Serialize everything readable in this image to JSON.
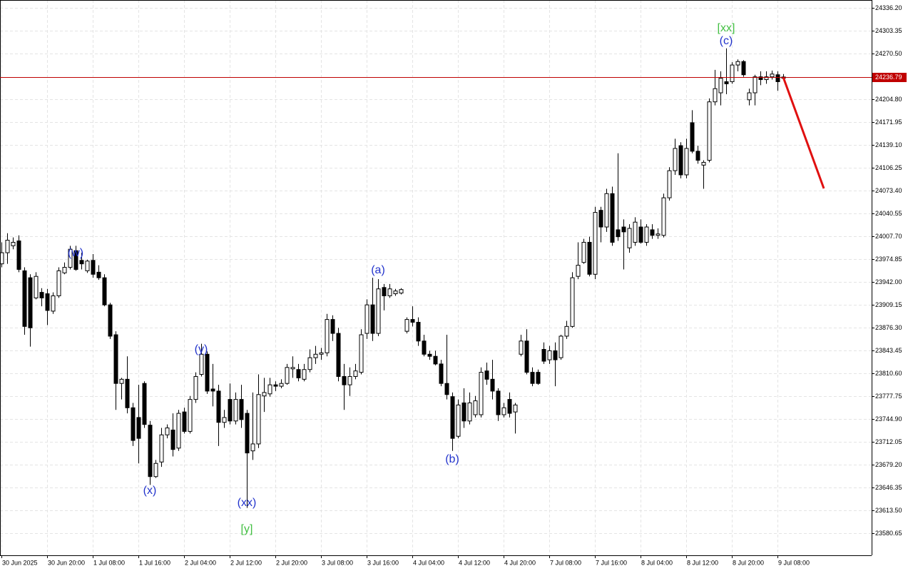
{
  "chart_data": {
    "type": "candlestick",
    "categories": [
      "30 Jun 2025",
      null,
      null,
      null,
      null,
      null,
      null,
      null,
      "30 Jun 20:00",
      null,
      null,
      null,
      null,
      null,
      null,
      null,
      "1 Jul 08:00",
      null,
      null,
      null,
      null,
      null,
      null,
      null,
      "1 Jul 16:00",
      null,
      null,
      null,
      null,
      null,
      null,
      null,
      "2 Jul 04:00",
      null,
      null,
      null,
      null,
      null,
      null,
      null,
      "2 Jul 12:00",
      null,
      null,
      null,
      null,
      null,
      null,
      null,
      "2 Jul 20:00",
      null,
      null,
      null,
      null,
      null,
      null,
      null,
      "3 Jul 08:00",
      null,
      null,
      null,
      null,
      null,
      null,
      null,
      "3 Jul 16:00",
      null,
      null,
      null,
      null,
      null,
      null,
      null,
      "4 Jul 04:00",
      null,
      null,
      null,
      null,
      null,
      null,
      null,
      "4 Jul 12:00",
      null,
      null,
      null,
      null,
      null,
      null,
      null,
      "4 Jul 20:00",
      null,
      null,
      null,
      null,
      null,
      null,
      null,
      "7 Jul 08:00",
      null,
      null,
      null,
      null,
      null,
      null,
      null,
      "7 Jul 16:00",
      null,
      null,
      null,
      null,
      null,
      null,
      null,
      "8 Jul 04:00",
      null,
      null,
      null,
      null,
      null,
      null,
      null,
      "8 Jul 12:00",
      null,
      null,
      null,
      null,
      null,
      null,
      null,
      "8 Jul 20:00",
      null,
      null,
      null,
      null,
      null,
      null,
      null,
      "9 Jul 08:00",
      null
    ],
    "open": [
      23968,
      23984,
      23994,
      24001,
      23958,
      23948,
      23919,
      23927,
      23925,
      23900,
      23922,
      23955,
      23963,
      23987,
      23973,
      23958,
      23973,
      23956,
      23948,
      23909,
      23866,
      23796,
      23802,
      23761,
      23747,
      23796,
      23736,
      23662,
      23683,
      23722,
      23729,
      23703,
      23755,
      23727,
      23773,
      23809,
      23838,
      23788,
      23785,
      23740,
      23773,
      23742,
      23773,
      23753,
      23699,
      23709,
      23778,
      23781,
      23794,
      23792,
      23796,
      23817,
      23816,
      23802,
      23816,
      23833,
      23838,
      23840,
      23888,
      23868,
      23806,
      23794,
      23806,
      23812,
      23868,
      23909,
      23868,
      23934,
      23922,
      23925,
      23926,
      23871,
      23888,
      23884,
      23857,
      23838,
      23835,
      23824,
      23796,
      23777,
      23720,
      23768,
      23742,
      23751,
      23751,
      23814,
      23802,
      23785,
      23751,
      23773,
      23755,
      23838,
      23857,
      23812,
      23812,
      23845,
      23830,
      23843,
      23833,
      23864,
      23878,
      23950,
      23970,
      23999,
      23953,
      24045,
      24021,
      24069,
      24017,
      24021,
      23991,
      23999,
      24021,
      23999,
      24017,
      24009,
      24009,
      24063,
      24102,
      24138,
      24096,
      24171,
      24130,
      24110,
      24117,
      24201,
      24214,
      24230,
      24230,
      24254,
      24259,
      24204,
      24214,
      24237,
      24233,
      24237,
      24240,
      24235
    ],
    "high": [
      23999,
      24012,
      24006,
      24009,
      23963,
      23953,
      23956,
      23933,
      23932,
      23927,
      23963,
      23970,
      23994,
      23994,
      23984,
      23974,
      23982,
      23966,
      23953,
      23912,
      23871,
      23804,
      23835,
      23768,
      23794,
      23799,
      23742,
      23686,
      23732,
      23737,
      23753,
      23758,
      23761,
      23778,
      23812,
      23853,
      23842,
      23824,
      23794,
      23758,
      23796,
      23783,
      23794,
      23758,
      23783,
      23809,
      23804,
      23804,
      23799,
      23802,
      23824,
      23835,
      23824,
      23824,
      23845,
      23850,
      23847,
      23896,
      23894,
      23876,
      23824,
      23819,
      23824,
      23874,
      23917,
      23948,
      23946,
      23939,
      23939,
      23932,
      23933,
      23891,
      23907,
      23891,
      23866,
      23843,
      23843,
      23830,
      23866,
      23783,
      23773,
      23789,
      23783,
      23778,
      23819,
      23826,
      23830,
      23789,
      23768,
      23783,
      23768,
      23866,
      23874,
      23819,
      23816,
      23855,
      23850,
      23855,
      23866,
      23886,
      23956,
      23999,
      24004,
      24007,
      24050,
      24050,
      24076,
      24079,
      24127,
      24032,
      24025,
      24035,
      24032,
      24025,
      24025,
      24019,
      24069,
      24107,
      24148,
      24143,
      24148,
      24189,
      24138,
      24117,
      24206,
      24247,
      24245,
      24278,
      24258,
      24262,
      24261,
      24220,
      24240,
      24245,
      24245,
      24246,
      24245,
      24241
    ],
    "low": [
      23963,
      23968,
      23989,
      23956,
      23866,
      23849,
      23917,
      23907,
      23880,
      23896,
      23919,
      23953,
      23960,
      23958,
      23960,
      23955,
      23948,
      23945,
      23907,
      23860,
      23758,
      23773,
      23753,
      23706,
      23681,
      23732,
      23650,
      23660,
      23676,
      23717,
      23691,
      23699,
      23724,
      23724,
      23768,
      23806,
      23781,
      23763,
      23706,
      23732,
      23737,
      23737,
      23732,
      23617,
      23686,
      23703,
      23755,
      23777,
      23785,
      23789,
      23794,
      23804,
      23799,
      23799,
      23812,
      23824,
      23830,
      23835,
      23857,
      23799,
      23758,
      23778,
      23802,
      23809,
      23860,
      23857,
      23864,
      23901,
      23919,
      23922,
      23924,
      23868,
      23878,
      23850,
      23835,
      23830,
      23822,
      23792,
      23773,
      23699,
      23717,
      23732,
      23737,
      23747,
      23747,
      23794,
      23773,
      23742,
      23747,
      23747,
      23724,
      23835,
      23809,
      23792,
      23794,
      23824,
      23824,
      23792,
      23830,
      23860,
      23876,
      23946,
      23968,
      23950,
      23946,
      23999,
      24014,
      23994,
      24001,
      23960,
      23984,
      23994,
      23997,
      23994,
      24004,
      24004,
      24006,
      24059,
      24096,
      24091,
      24091,
      24127,
      24112,
      24076,
      24114,
      24196,
      24196,
      24212,
      24227,
      24245,
      24237,
      24196,
      24196,
      24225,
      24227,
      24233,
      24217,
      24233
    ],
    "close": [
      23984,
      24002,
      23999,
      23960,
      23878,
      23876,
      23950,
      23919,
      23901,
      23922,
      23958,
      23963,
      23989,
      23960,
      23968,
      23972,
      23953,
      23948,
      23909,
      23864,
      23796,
      23802,
      23761,
      23714,
      23717,
      23737,
      23662,
      23681,
      23722,
      23732,
      23701,
      23753,
      23727,
      23773,
      23806,
      23838,
      23785,
      23785,
      23740,
      23747,
      23742,
      23773,
      23744,
      23696,
      23709,
      23780,
      23783,
      23794,
      23792,
      23796,
      23819,
      23819,
      23804,
      23816,
      23833,
      23838,
      23840,
      23888,
      23868,
      23806,
      23794,
      23806,
      23814,
      23866,
      23909,
      23868,
      23932,
      23922,
      23932,
      23929,
      23931,
      23888,
      23884,
      23857,
      23838,
      23835,
      23824,
      23796,
      23780,
      23717,
      23765,
      23742,
      23768,
      23771,
      23812,
      23802,
      23785,
      23751,
      23761,
      23753,
      23765,
      23857,
      23812,
      23796,
      23796,
      23828,
      23843,
      23830,
      23864,
      23878,
      23948,
      23966,
      23999,
      23953,
      24042,
      24021,
      24069,
      23999,
      24007,
      24014,
      24019,
      24028,
      23999,
      24021,
      24009,
      24011,
      24063,
      24102,
      24134,
      24096,
      24134,
      24130,
      24117,
      24114,
      24201,
      24220,
      24235,
      24227,
      24254,
      24259,
      24240,
      24214,
      24237,
      24233,
      24237,
      24241,
      24230,
      24236.79
    ],
    "up_color": "#ffffff",
    "down_color": "#000000",
    "ylim": [
      23548.8,
      24347.5
    ],
    "yticks": [
      {
        "value": 24336.2,
        "label": "24336.20"
      },
      24303.35,
      {
        "value": 24270.5,
        "label": "24270.50"
      },
      {
        "value": 24204.8,
        "label": "24204.80"
      },
      24171.95,
      {
        "value": 24139.1,
        "label": "24139.10"
      },
      24106.25,
      {
        "value": 24073.4,
        "label": "24073.40"
      },
      24040.55,
      {
        "value": 24007.7,
        "label": "24007.70"
      },
      23974.85,
      {
        "value": 23942,
        "label": "23942.00"
      },
      23909.15,
      {
        "value": 23876.3,
        "label": "23876.30"
      },
      23843.45,
      {
        "value": 23810.6,
        "label": "23810.60"
      },
      23777.75,
      {
        "value": 23744.9,
        "label": "23744.90"
      },
      23712.05,
      {
        "value": 23679.2,
        "label": "23679.20"
      },
      23646.35,
      {
        "value": 23613.5,
        "label": "23613.50"
      },
      23580.65
    ],
    "grid": true,
    "current_price": 24236.79,
    "current_price_color": "#c00000",
    "annotations": [
      {
        "text": "(w)",
        "color": "#2233cc"
      },
      {
        "text": "(x)",
        "color": "#2233cc"
      },
      {
        "text": "(y)",
        "color": "#2233cc"
      },
      {
        "text": "(xx)",
        "color": "#2233cc"
      },
      {
        "text": "(a)",
        "color": "#2233cc"
      },
      {
        "text": "(b)",
        "color": "#2233cc"
      },
      {
        "text": "(c)",
        "color": "#2233cc"
      },
      {
        "text": "[y]",
        "color": "#44c044"
      },
      {
        "text": "[xx]",
        "color": "#44c044"
      }
    ]
  }
}
